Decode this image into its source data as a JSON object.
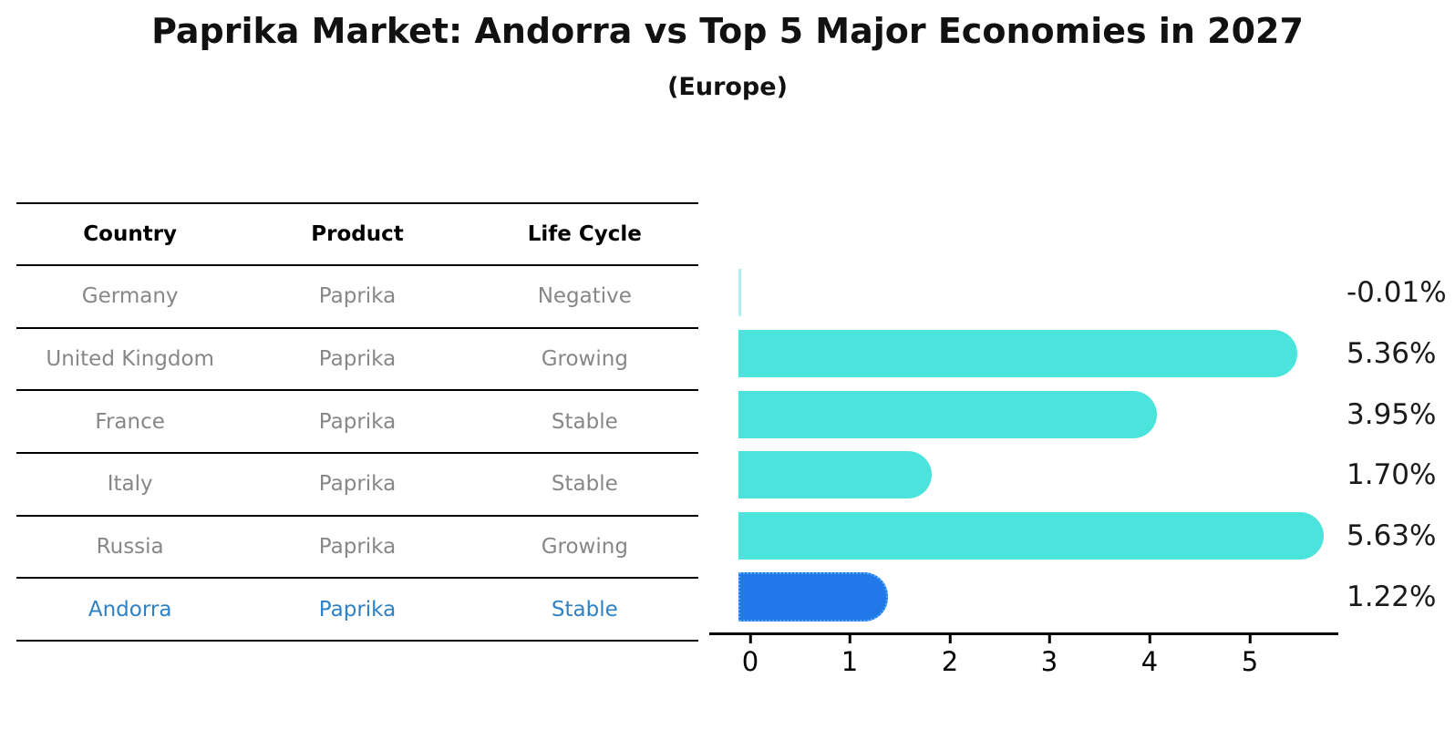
{
  "title": "Paprika Market: Andorra vs Top 5 Major Economies in 2027",
  "subtitle": "(Europe)",
  "colors": {
    "bar_default": "#4BE4DC",
    "bar_near_zero": "#AFF0EC",
    "bar_highlight": "#2178E8",
    "bar_highlight_border": "#59ACF2",
    "table_text": "#878787",
    "highlight_text": "#2E81C6",
    "axis": "#000000"
  },
  "table": {
    "headers": [
      "Country",
      "Product",
      "Life Cycle"
    ],
    "rows": [
      {
        "country": "Germany",
        "product": "Paprika",
        "life_cycle": "Negative",
        "highlight": false
      },
      {
        "country": "United Kingdom",
        "product": "Paprika",
        "life_cycle": "Growing",
        "highlight": false
      },
      {
        "country": "France",
        "product": "Paprika",
        "life_cycle": "Stable",
        "highlight": false
      },
      {
        "country": "Italy",
        "product": "Paprika",
        "life_cycle": "Stable",
        "highlight": false
      },
      {
        "country": "Russia",
        "product": "Paprika",
        "life_cycle": "Growing",
        "highlight": false
      },
      {
        "country": "Andorra",
        "product": "Paprika",
        "life_cycle": "Stable",
        "highlight": true
      }
    ]
  },
  "chart_data": {
    "type": "bar",
    "orientation": "horizontal",
    "title": "Paprika Market: Andorra vs Top 5 Major Economies in 2027",
    "subtitle": "(Europe)",
    "categories": [
      "Germany",
      "United Kingdom",
      "France",
      "Italy",
      "Russia",
      "Andorra"
    ],
    "values": [
      -0.01,
      5.36,
      3.95,
      1.7,
      5.63,
      1.22
    ],
    "labels": [
      "-0.01%",
      "5.36%",
      "3.95%",
      "1.70%",
      "5.63%",
      "1.22%"
    ],
    "highlight_index": 5,
    "x_ticks": [
      0,
      1,
      2,
      3,
      4,
      5
    ],
    "xlim": [
      -0.4,
      5.9
    ],
    "grid": false,
    "legend": null,
    "xlabel": "",
    "ylabel": ""
  }
}
